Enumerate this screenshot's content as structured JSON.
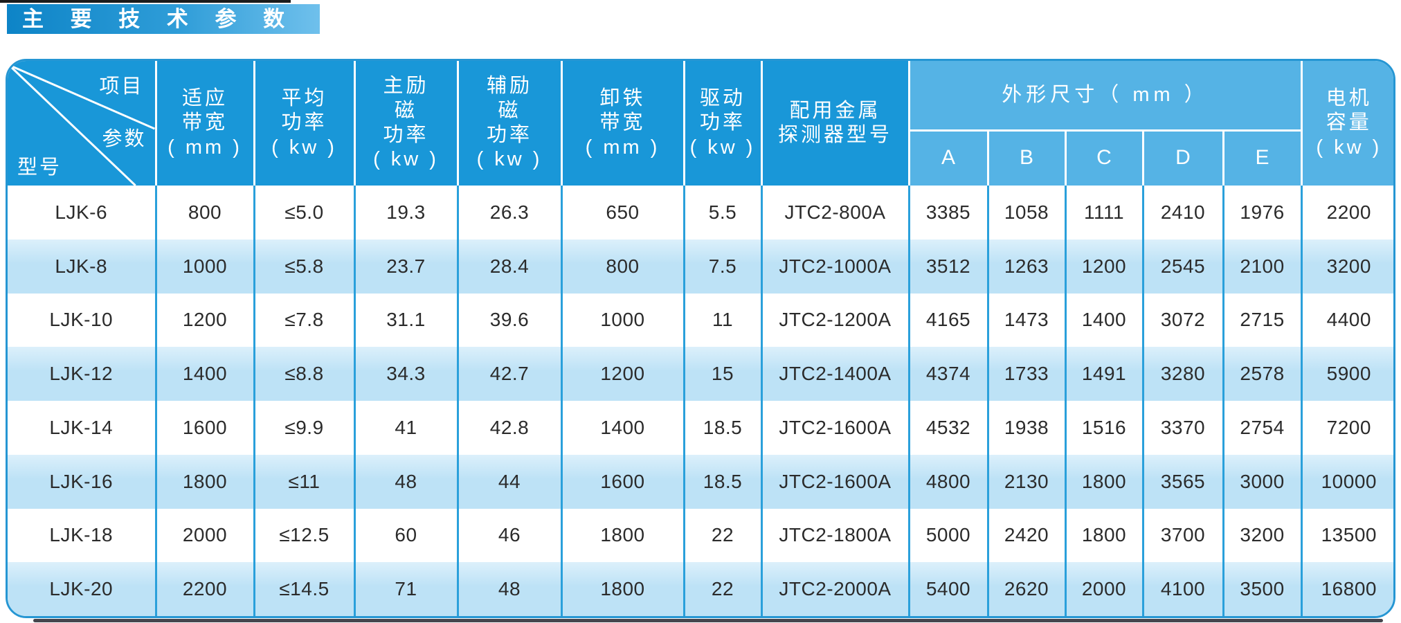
{
  "page_title": "主 要 技 术 参 数",
  "table": {
    "corner": {
      "item_label": "项目",
      "param_label": "参数",
      "model_label": "型号"
    },
    "headers": {
      "bandwidth": "适应\n带宽\n( mm )",
      "avg_power": "平均\n功率\n( kw )",
      "main_excitation_power": "主励\n磁\n功率\n( kw )",
      "aux_excitation_power": "辅励\n磁\n功率\n( kw )",
      "discharge_bandwidth": "卸铁\n带宽\n( mm )",
      "drive_power": "驱动\n功率\n( kw )",
      "metal_detector_model": "配用金属\n探测器型号",
      "dimensions_group": "外形尺寸（ mm ）",
      "dimension_subcols": [
        "A",
        "B",
        "C",
        "D",
        "E"
      ],
      "motor_capacity": "电机\n容量\n( kw )"
    },
    "rows": [
      [
        "LJK-6",
        "800",
        "≤5.0",
        "19.3",
        "26.3",
        "650",
        "5.5",
        "JTC2-800A",
        "3385",
        "1058",
        "1111",
        "2410",
        "1976",
        "2200"
      ],
      [
        "LJK-8",
        "1000",
        "≤5.8",
        "23.7",
        "28.4",
        "800",
        "7.5",
        "JTC2-1000A",
        "3512",
        "1263",
        "1200",
        "2545",
        "2100",
        "3200"
      ],
      [
        "LJK-10",
        "1200",
        "≤7.8",
        "31.1",
        "39.6",
        "1000",
        "11",
        "JTC2-1200A",
        "4165",
        "1473",
        "1400",
        "3072",
        "2715",
        "4400"
      ],
      [
        "LJK-12",
        "1400",
        "≤8.8",
        "34.3",
        "42.7",
        "1200",
        "15",
        "JTC2-1400A",
        "4374",
        "1733",
        "1491",
        "3280",
        "2578",
        "5900"
      ],
      [
        "LJK-14",
        "1600",
        "≤9.9",
        "41",
        "42.8",
        "1400",
        "18.5",
        "JTC2-1600A",
        "4532",
        "1938",
        "1516",
        "3370",
        "2754",
        "7200"
      ],
      [
        "LJK-16",
        "1800",
        "≤11",
        "48",
        "44",
        "1600",
        "18.5",
        "JTC2-1600A",
        "4800",
        "2130",
        "1800",
        "3565",
        "3000",
        "10000"
      ],
      [
        "LJK-18",
        "2000",
        "≤12.5",
        "60",
        "46",
        "1800",
        "22",
        "JTC2-1800A",
        "5000",
        "2420",
        "1800",
        "3700",
        "3200",
        "13500"
      ],
      [
        "LJK-20",
        "2200",
        "≤14.5",
        "71",
        "48",
        "1800",
        "22",
        "JTC2-2000A",
        "5400",
        "2620",
        "2000",
        "4100",
        "3500",
        "16800"
      ]
    ]
  },
  "colors": {
    "header_blue": "#1997d8",
    "header_light_blue": "#55b3e5",
    "row_alt_blue": "#bde2f6",
    "grid_blue": "#2aa0db",
    "title_gradient_left": "#0d84c7",
    "title_gradient_right": "#6fc0ec"
  }
}
